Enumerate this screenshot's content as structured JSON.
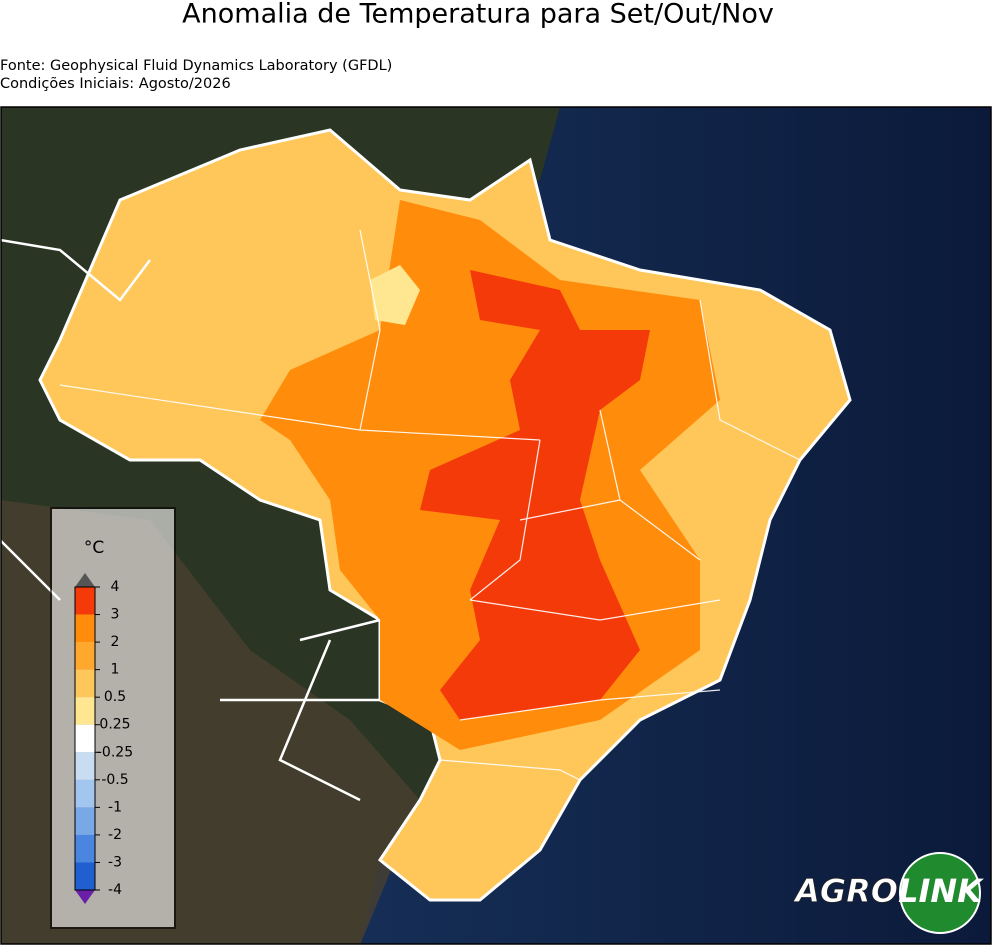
{
  "header": {
    "title": "Anomalia de Temperatura para Set/Out/Nov",
    "source": "Fonte: Geophysical Fluid Dynamics Laboratory (GFDL)",
    "initial_conditions": "Condições Iniciais: Agosto/2026"
  },
  "colorbar": {
    "unit": "°C",
    "ticks": [
      4,
      3,
      2,
      1,
      0.5,
      0.25,
      -0.25,
      -0.5,
      -1,
      -2,
      -3,
      -4
    ],
    "colors": [
      "#f53a0a",
      "#ff8c0a",
      "#ffa82e",
      "#ffc75a",
      "#ffe690",
      "#ffffff",
      "#c9ddf2",
      "#a2c6ee",
      "#78a8e6",
      "#4a86e0",
      "#1f5fd0"
    ],
    "over_color": "#555555",
    "under_color": "#6a1fa8"
  },
  "logo": {
    "left": "AGRO",
    "right": "LINK"
  }
}
